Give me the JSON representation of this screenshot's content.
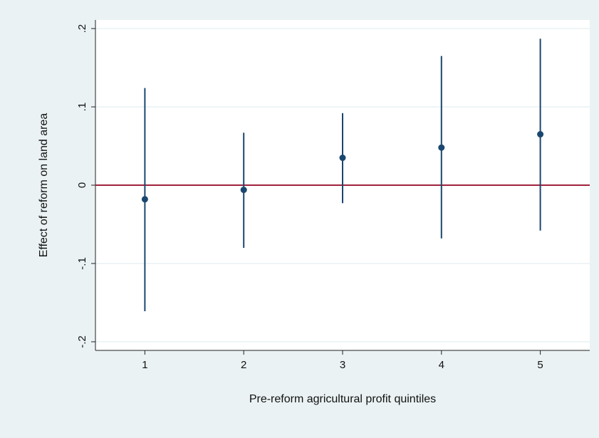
{
  "chart_data": {
    "type": "errorbar",
    "x_label": "Pre-reform agricultural profit quintiles",
    "y_label": "Effect of reform on land area",
    "x": [
      1,
      2,
      3,
      4,
      5
    ],
    "values": [
      -0.018,
      -0.006,
      0.035,
      0.048,
      0.065
    ],
    "lower": [
      -0.161,
      -0.08,
      -0.023,
      -0.068,
      -0.058
    ],
    "upper": [
      0.124,
      0.067,
      0.092,
      0.165,
      0.187
    ],
    "color": "#1a476f",
    "xlim": [
      0.5,
      5.5
    ],
    "xticks": [
      1,
      2,
      3,
      4,
      5
    ],
    "ylim": [
      -0.211,
      0.211
    ],
    "yticks": [
      {
        "value": -0.2,
        "label": "-.2"
      },
      {
        "value": -0.1,
        "label": "-.1"
      },
      0,
      {
        "value": 0.1,
        "label": ".1"
      },
      {
        "value": 0.2,
        "label": ".2"
      }
    ],
    "grid": true,
    "refline": 0,
    "refline_color": "#a0223b"
  }
}
